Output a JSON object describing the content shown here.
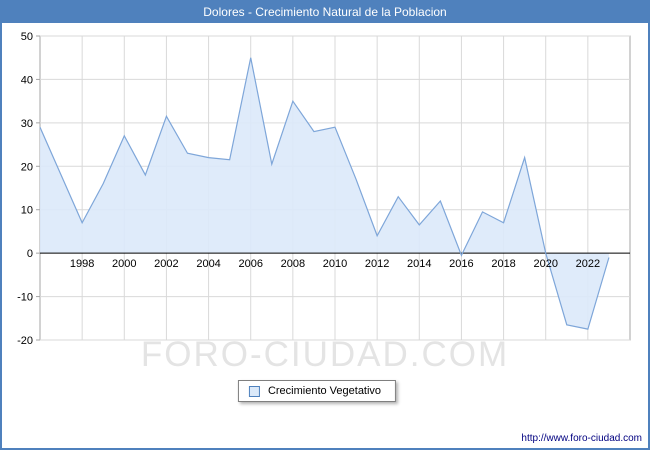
{
  "title": "Dolores - Crecimiento Natural de la Poblacion",
  "watermark": "FORO-CIUDAD.COM",
  "footer_url": "http://www.foro-ciudad.com",
  "legend": {
    "label": "Crecimiento Vegetativo"
  },
  "colors": {
    "frame_border": "#4f81bd",
    "titlebar_bg": "#4f81bd",
    "titlebar_text": "#ffffff",
    "line": "#7ea6d9",
    "fill": "#dbe9f9",
    "grid": "#d9d9d9",
    "zero_line": "#000000",
    "plot_border": "#a6a6a6",
    "tick_text": "#000000",
    "watermark": "#e4e4e4",
    "footer": "#000080"
  },
  "chart_data": {
    "type": "area",
    "title": "Dolores - Crecimiento Natural de la Poblacion",
    "xlabel": "",
    "ylabel": "",
    "x": [
      1996,
      1997,
      1998,
      1999,
      2000,
      2001,
      2002,
      2003,
      2004,
      2005,
      2006,
      2007,
      2008,
      2009,
      2010,
      2011,
      2012,
      2013,
      2014,
      2015,
      2016,
      2017,
      2018,
      2019,
      2020,
      2021,
      2022,
      2023
    ],
    "series": [
      {
        "name": "Crecimiento Vegetativo",
        "values": [
          29,
          18,
          7,
          16,
          27,
          18,
          31.5,
          23,
          22,
          21.5,
          45,
          20.5,
          35,
          28,
          29,
          17,
          4,
          13,
          6.5,
          12,
          -0.5,
          9.5,
          7,
          22,
          0,
          -16.5,
          -17.5,
          -1
        ]
      }
    ],
    "xlim": [
      1996,
      2024
    ],
    "ylim": [
      -20,
      50
    ],
    "yticks": [
      50,
      40,
      30,
      20,
      10,
      0,
      -10,
      -20
    ],
    "xticks": [
      1998,
      2000,
      2002,
      2004,
      2006,
      2008,
      2010,
      2012,
      2014,
      2016,
      2018,
      2020,
      2022
    ],
    "baseline": 0,
    "grid": true,
    "legend_position": "bottom-center"
  }
}
